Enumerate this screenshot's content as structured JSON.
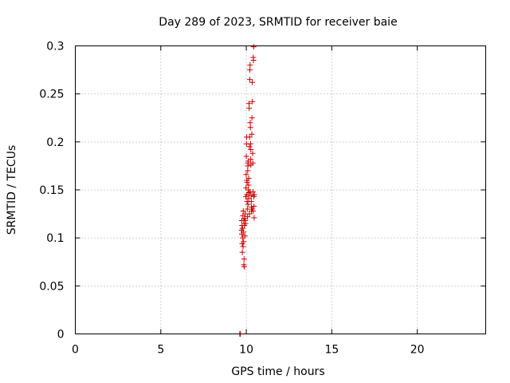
{
  "chart_data": {
    "type": "scatter",
    "title": "Day 289 of 2023, SRMTID for receiver baie",
    "xlabel": "GPS time / hours",
    "ylabel": "SRMTID / TECUs",
    "xlim": [
      0,
      24
    ],
    "ylim": [
      0,
      0.3
    ],
    "x_ticks": [
      0,
      5,
      10,
      15,
      20
    ],
    "y_ticks": [
      0,
      0.05,
      0.1,
      0.15,
      0.2,
      0.25,
      0.3
    ],
    "grid": true,
    "marker": "+",
    "series": [
      {
        "name": "SRMTID",
        "color": "#cc0000",
        "points": [
          [
            9.62,
            0.0
          ],
          [
            9.65,
            0.0
          ],
          [
            9.72,
            0.108
          ],
          [
            9.73,
            0.118
          ],
          [
            9.74,
            0.104
          ],
          [
            9.75,
            0.113
          ],
          [
            9.76,
            0.094
          ],
          [
            9.77,
            0.085
          ],
          [
            9.78,
            0.11
          ],
          [
            9.79,
            0.1
          ],
          [
            9.8,
            0.123
          ],
          [
            9.81,
            0.091
          ],
          [
            9.82,
            0.128
          ],
          [
            9.83,
            0.106
          ],
          [
            9.84,
            0.096
          ],
          [
            9.85,
            0.118
          ],
          [
            9.86,
            0.072
          ],
          [
            9.87,
            0.078
          ],
          [
            9.88,
            0.07
          ],
          [
            9.89,
            0.113
          ],
          [
            9.9,
            0.12
          ],
          [
            9.92,
            0.102
          ],
          [
            9.93,
            0.125
          ],
          [
            9.95,
            0.115
          ],
          [
            9.97,
            0.143
          ],
          [
            9.98,
            0.152
          ],
          [
            9.99,
            0.166
          ],
          [
            10.0,
            0.185
          ],
          [
            10.01,
            0.198
          ],
          [
            10.02,
            0.205
          ],
          [
            10.03,
            0.16
          ],
          [
            10.04,
            0.145
          ],
          [
            10.05,
            0.138
          ],
          [
            10.06,
            0.13
          ],
          [
            10.07,
            0.122
          ],
          [
            10.08,
            0.17
          ],
          [
            10.09,
            0.175
          ],
          [
            10.1,
            0.178
          ],
          [
            10.11,
            0.18
          ],
          [
            10.12,
            0.15
          ],
          [
            10.13,
            0.155
          ],
          [
            10.14,
            0.147
          ],
          [
            10.15,
            0.141
          ],
          [
            10.16,
            0.24
          ],
          [
            10.17,
            0.235
          ],
          [
            10.18,
            0.195
          ],
          [
            10.19,
            0.205
          ],
          [
            10.2,
            0.265
          ],
          [
            10.21,
            0.275
          ],
          [
            10.22,
            0.28
          ],
          [
            10.23,
            0.22
          ],
          [
            10.24,
            0.215
          ],
          [
            10.25,
            0.198
          ],
          [
            10.26,
            0.182
          ],
          [
            10.27,
            0.176
          ],
          [
            10.28,
            0.144
          ],
          [
            10.29,
            0.138
          ],
          [
            10.3,
            0.132
          ],
          [
            10.32,
            0.208
          ],
          [
            10.33,
            0.225
          ],
          [
            10.35,
            0.262
          ],
          [
            10.36,
            0.242
          ],
          [
            10.37,
            0.188
          ],
          [
            10.38,
            0.178
          ],
          [
            10.39,
            0.148
          ],
          [
            10.4,
            0.128
          ],
          [
            10.41,
            0.288
          ],
          [
            10.42,
            0.285
          ],
          [
            10.43,
            0.299
          ],
          [
            10.44,
            0.143
          ],
          [
            10.45,
            0.133
          ],
          [
            10.46,
            0.121
          ],
          [
            10.47,
            0.145
          ],
          [
            10.3,
            0.128
          ],
          [
            10.18,
            0.125
          ],
          [
            10.1,
            0.135
          ],
          [
            10.05,
            0.158
          ],
          [
            10.22,
            0.148
          ],
          [
            10.26,
            0.192
          ],
          [
            10.14,
            0.162
          ],
          [
            10.34,
            0.13
          ],
          [
            9.94,
            0.118
          ]
        ]
      }
    ]
  }
}
